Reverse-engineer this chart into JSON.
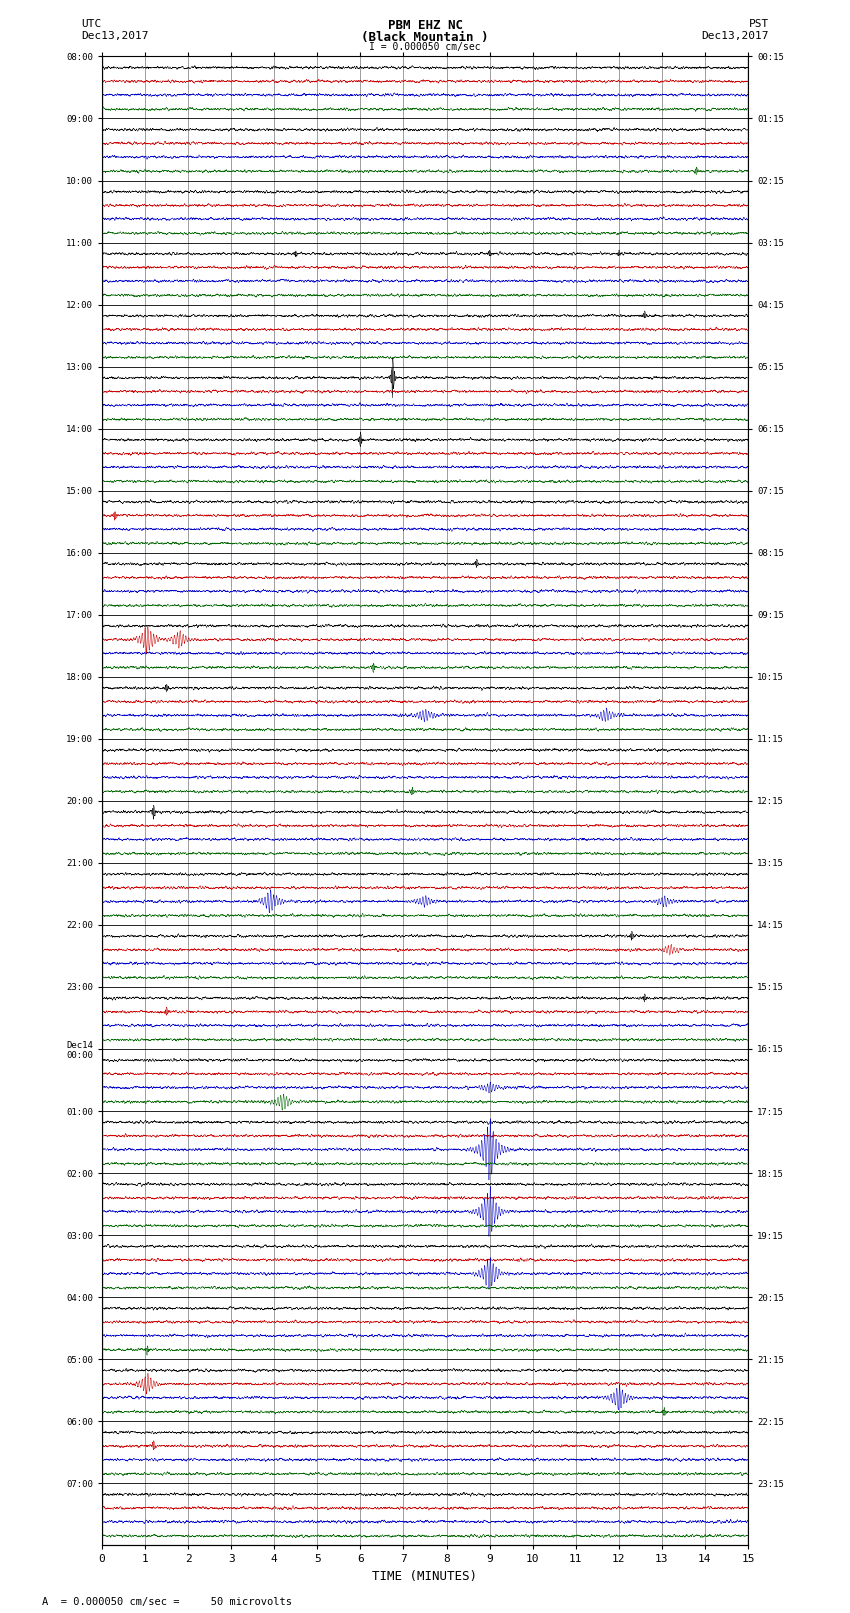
{
  "title_line1": "PBM EHZ NC",
  "title_line2": "(Black Mountain )",
  "title_line3": "I = 0.000050 cm/sec",
  "left_header_line1": "UTC",
  "left_header_line2": "Dec13,2017",
  "right_header_line1": "PST",
  "right_header_line2": "Dec13,2017",
  "xlabel": "TIME (MINUTES)",
  "footer_text": "A  = 0.000050 cm/sec =     50 microvolts",
  "utc_times": [
    "08:00",
    "09:00",
    "10:00",
    "11:00",
    "12:00",
    "13:00",
    "14:00",
    "15:00",
    "16:00",
    "17:00",
    "18:00",
    "19:00",
    "20:00",
    "21:00",
    "22:00",
    "23:00",
    "Dec14\n00:00",
    "01:00",
    "02:00",
    "03:00",
    "04:00",
    "05:00",
    "06:00",
    "07:00"
  ],
  "pst_times": [
    "00:15",
    "01:15",
    "02:15",
    "03:15",
    "04:15",
    "05:15",
    "06:15",
    "07:15",
    "08:15",
    "09:15",
    "10:15",
    "11:15",
    "12:15",
    "13:15",
    "14:15",
    "15:15",
    "16:15",
    "17:15",
    "18:15",
    "19:15",
    "20:15",
    "21:15",
    "22:15",
    "23:15"
  ],
  "n_rows": 24,
  "n_lines_per_row": 4,
  "minutes_per_row": 15,
  "background_color": "#ffffff",
  "line_colors": [
    "#000000",
    "#cc0000",
    "#0000cc",
    "#006600"
  ],
  "grid_color": "#888888",
  "noise_amplitude": 0.018,
  "fig_width": 8.5,
  "fig_height": 16.13
}
